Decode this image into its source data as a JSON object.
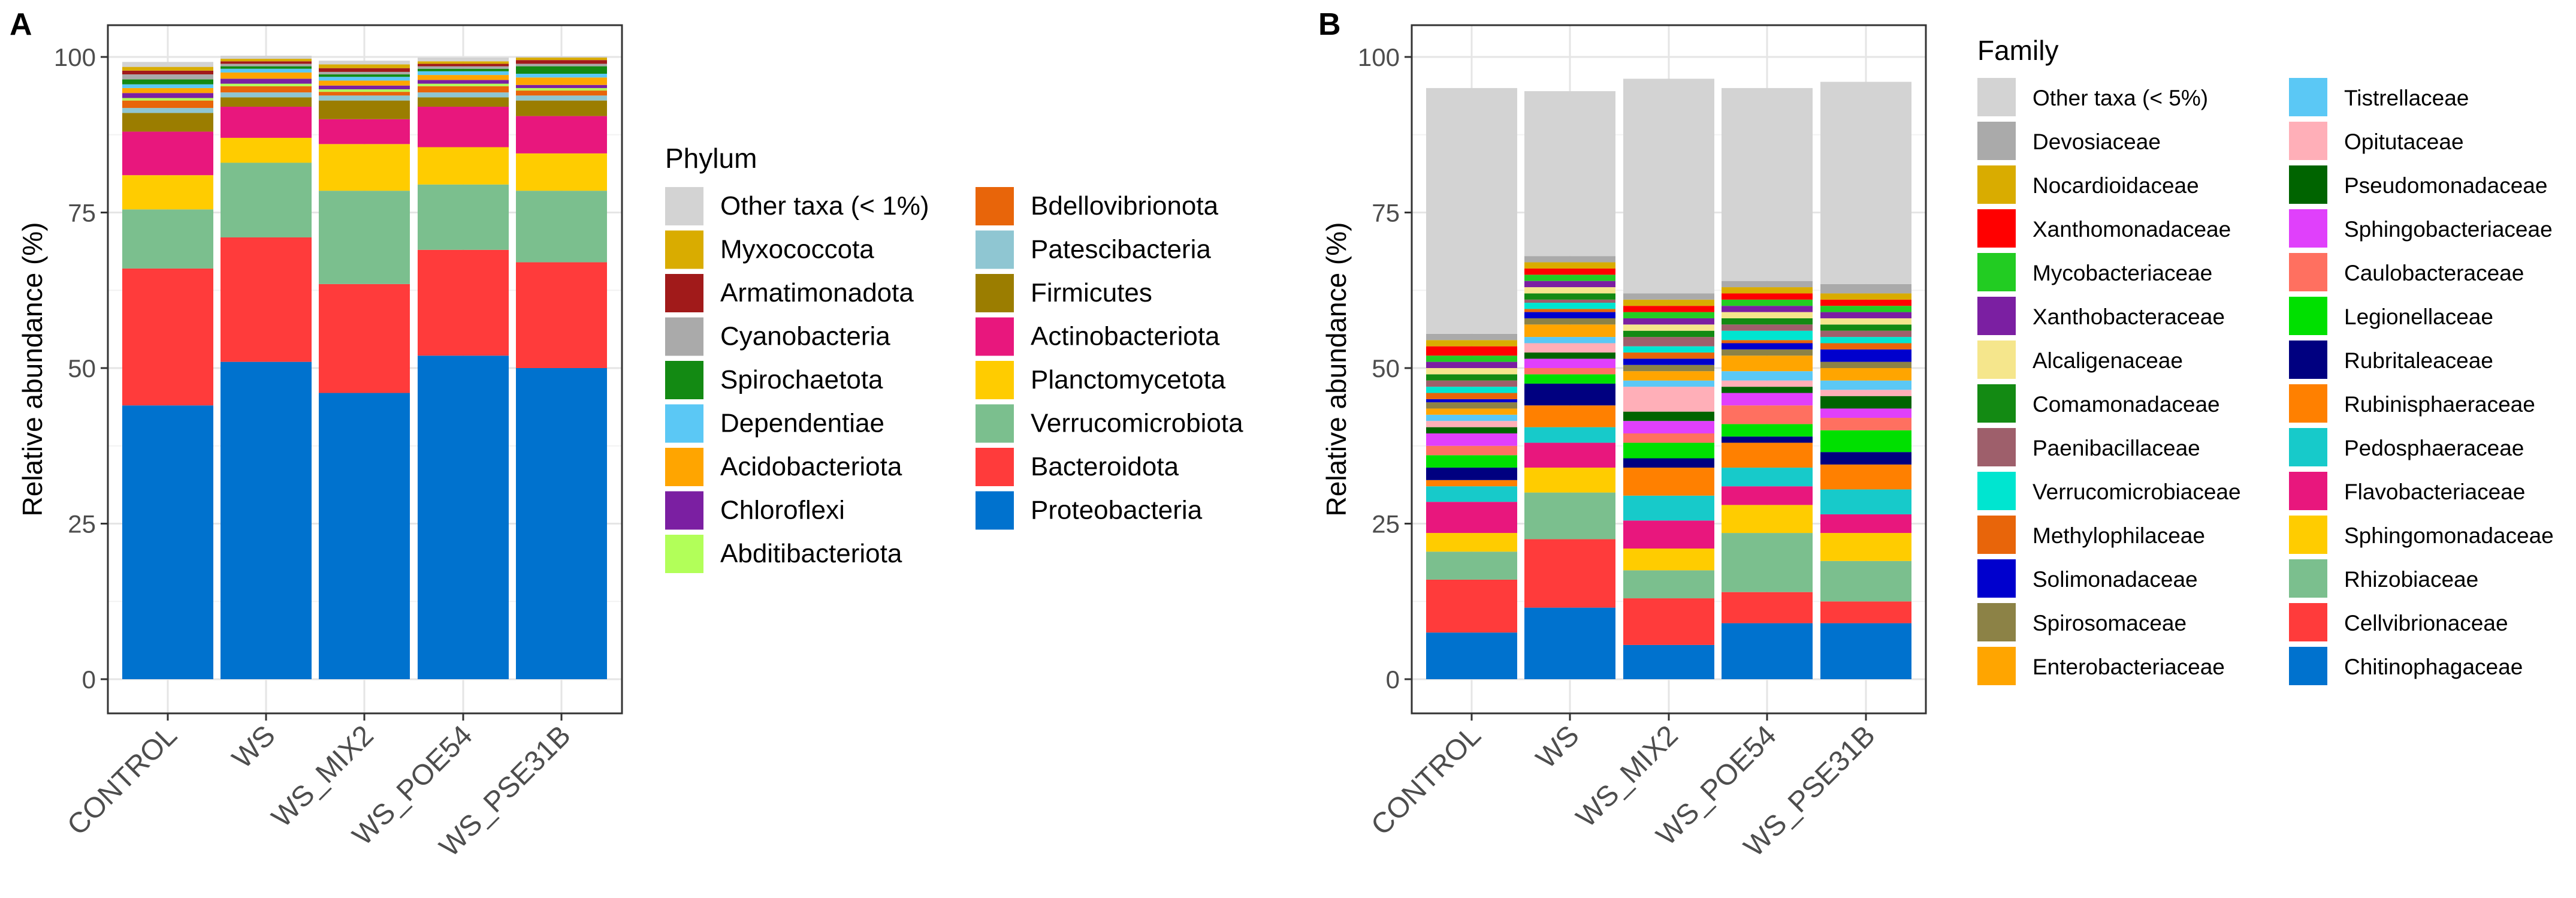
{
  "chart_data": [
    {
      "panel": "A",
      "type": "bar",
      "stacked": true,
      "ylabel": "Relative abundance (%)",
      "ylim": [
        0,
        100
      ],
      "yticks": [
        0,
        25,
        50,
        75,
        100
      ],
      "categories": [
        "CONTROL",
        "WS",
        "WS_MIX2",
        "WS_POE54",
        "WS_PSE31B"
      ],
      "grid": true,
      "legend_title": "Phylum",
      "legend_placement": "right",
      "series": [
        {
          "name": "Proteobacteria",
          "color": "#0072CE",
          "values": [
            44,
            51,
            46,
            52,
            50
          ]
        },
        {
          "name": "Bacteroidota",
          "color": "#FF3B3B",
          "values": [
            22,
            20,
            17.5,
            17,
            17
          ]
        },
        {
          "name": "Verrucomicrobiota",
          "color": "#7BBF8E",
          "values": [
            9.5,
            12,
            15,
            10.5,
            11.5
          ]
        },
        {
          "name": "Planctomycetota",
          "color": "#FFCC00",
          "values": [
            5.5,
            4,
            7.5,
            6,
            6
          ]
        },
        {
          "name": "Actinobacteriota",
          "color": "#E8177D",
          "values": [
            7,
            5,
            4,
            6.5,
            6
          ]
        },
        {
          "name": "Firmicutes",
          "color": "#9B7D00",
          "values": [
            3,
            1.5,
            3,
            1.5,
            2.5
          ]
        },
        {
          "name": "Patescibacteria",
          "color": "#8FC6D2",
          "values": [
            0.8,
            0.8,
            0.8,
            0.8,
            0.8
          ]
        },
        {
          "name": "Bdellovibrionota",
          "color": "#E8650A",
          "values": [
            1.2,
            1,
            0.6,
            1,
            0.8
          ]
        },
        {
          "name": "Abditibacteriota",
          "color": "#B2FF59",
          "values": [
            0.4,
            0.4,
            0.4,
            0.4,
            0.4
          ]
        },
        {
          "name": "Chloroflexi",
          "color": "#7B1FA2",
          "values": [
            0.8,
            0.8,
            0.6,
            0.6,
            0.5
          ]
        },
        {
          "name": "Acidobacteriota",
          "color": "#FFA500",
          "values": [
            0.8,
            1,
            0.8,
            0.8,
            1.2
          ]
        },
        {
          "name": "Dependentiae",
          "color": "#5BC8F5",
          "values": [
            0.6,
            0.6,
            0.6,
            0.6,
            0.6
          ]
        },
        {
          "name": "Spirochaetota",
          "color": "#138A13",
          "values": [
            0.8,
            0.4,
            0.4,
            0.4,
            1.2
          ]
        },
        {
          "name": "Cyanobacteria",
          "color": "#AAAAAA",
          "values": [
            0.8,
            0.4,
            0.4,
            0.4,
            0.4
          ]
        },
        {
          "name": "Armatimonadota",
          "color": "#A11A1A",
          "values": [
            0.6,
            0.4,
            0.6,
            0.4,
            0.6
          ]
        },
        {
          "name": "Myxococcota",
          "color": "#D9AC00",
          "values": [
            0.6,
            0.4,
            0.6,
            0.4,
            0.4
          ]
        },
        {
          "name": "Other taxa (< 1%)",
          "color": "#D3D3D3",
          "values": [
            0.8,
            0.5,
            0.6,
            0.6,
            0.2
          ]
        }
      ]
    },
    {
      "panel": "B",
      "type": "bar",
      "stacked": true,
      "ylabel": "Relative abundance (%)",
      "ylim": [
        0,
        100
      ],
      "yticks": [
        0,
        25,
        50,
        75,
        100
      ],
      "categories": [
        "CONTROL",
        "WS",
        "WS_MIX2",
        "WS_POE54",
        "WS_PSE31B"
      ],
      "grid": true,
      "legend_title": "Family",
      "legend_placement": "right",
      "series": [
        {
          "name": "Chitinophagaceae",
          "color": "#0072CE",
          "values": [
            7.5,
            11.5,
            5.5,
            9,
            9
          ]
        },
        {
          "name": "Cellvibrionaceae",
          "color": "#FF3B3B",
          "values": [
            8.5,
            11,
            7.5,
            5,
            3.5
          ]
        },
        {
          "name": "Rhizobiaceae",
          "color": "#7BBF8E",
          "values": [
            4.5,
            7.5,
            4.5,
            9.5,
            6.5
          ]
        },
        {
          "name": "Sphingomonadaceae",
          "color": "#FFCC00",
          "values": [
            3,
            4,
            3.5,
            4.5,
            4.5
          ]
        },
        {
          "name": "Flavobacteriaceae",
          "color": "#E8177D",
          "values": [
            5,
            4,
            4.5,
            3,
            3
          ]
        },
        {
          "name": "Pedosphaeraceae",
          "color": "#17CACA",
          "values": [
            2.5,
            2.5,
            4,
            3,
            4
          ]
        },
        {
          "name": "Rubinisphaeraceae",
          "color": "#FF8000",
          "values": [
            1,
            3.5,
            4.5,
            4,
            4
          ]
        },
        {
          "name": "Rubritaleaceae",
          "color": "#000080",
          "values": [
            2,
            3.5,
            1.5,
            1,
            2
          ]
        },
        {
          "name": "Legionellaceae",
          "color": "#00E000",
          "values": [
            2,
            1.5,
            2.5,
            2,
            3.5
          ]
        },
        {
          "name": "Caulobacteraceae",
          "color": "#FF7060",
          "values": [
            1.5,
            1,
            1.5,
            3,
            2
          ]
        },
        {
          "name": "Sphingobacteriaceae",
          "color": "#E040FB",
          "values": [
            2,
            1.5,
            2,
            2,
            1.5
          ]
        },
        {
          "name": "Pseudomonadaceae",
          "color": "#006400",
          "values": [
            1,
            1,
            1.5,
            1,
            2
          ]
        },
        {
          "name": "Opitutaceae",
          "color": "#FFAFB8",
          "values": [
            1,
            1.5,
            4,
            1,
            1
          ]
        },
        {
          "name": "Tistrellaceae",
          "color": "#5BC8F5",
          "values": [
            1,
            1,
            1,
            1.5,
            1.5
          ]
        },
        {
          "name": "Enterobacteriaceae",
          "color": "#FFA500",
          "values": [
            1,
            2,
            1.5,
            2.5,
            2
          ]
        },
        {
          "name": "Spirosomaceae",
          "color": "#8C8246",
          "values": [
            1,
            1,
            1,
            1,
            1
          ]
        },
        {
          "name": "Solimonadaceae",
          "color": "#0000CD",
          "values": [
            0.5,
            1,
            1,
            1,
            2
          ]
        },
        {
          "name": "Methylophilaceae",
          "color": "#E8650A",
          "values": [
            1,
            0.5,
            1,
            0.5,
            1
          ]
        },
        {
          "name": "Verrucomicrobiaceae",
          "color": "#00E5D0",
          "values": [
            1,
            1,
            1,
            1.5,
            1
          ]
        },
        {
          "name": "Paenibacillaceae",
          "color": "#9E5F6B",
          "values": [
            1,
            0.5,
            1.5,
            1,
            1
          ]
        },
        {
          "name": "Comamonadaceae",
          "color": "#138A13",
          "values": [
            1,
            1,
            1,
            1,
            1
          ]
        },
        {
          "name": "Alcaligenaceae",
          "color": "#F5E68C",
          "values": [
            1,
            1,
            1,
            1,
            1
          ]
        },
        {
          "name": "Xanthobacteraceae",
          "color": "#7B1FA2",
          "values": [
            1,
            1,
            1,
            1,
            1
          ]
        },
        {
          "name": "Mycobacteriaceae",
          "color": "#22CC22",
          "values": [
            1,
            1,
            1,
            1,
            1
          ]
        },
        {
          "name": "Xanthomonadaceae",
          "color": "#FF0000",
          "values": [
            1.5,
            1,
            1,
            1,
            1
          ]
        },
        {
          "name": "Nocardioidaceae",
          "color": "#D9AC00",
          "values": [
            1,
            1,
            1,
            1,
            1
          ]
        },
        {
          "name": "Devosiaceae",
          "color": "#AAAAAA",
          "values": [
            1,
            1,
            1,
            1,
            1.5
          ]
        },
        {
          "name": "Other taxa (< 5%)",
          "color": "#D3D3D3",
          "values": [
            39.5,
            26.5,
            34.5,
            31,
            32.5
          ]
        }
      ]
    }
  ],
  "panel_labels": [
    "A",
    "B"
  ]
}
